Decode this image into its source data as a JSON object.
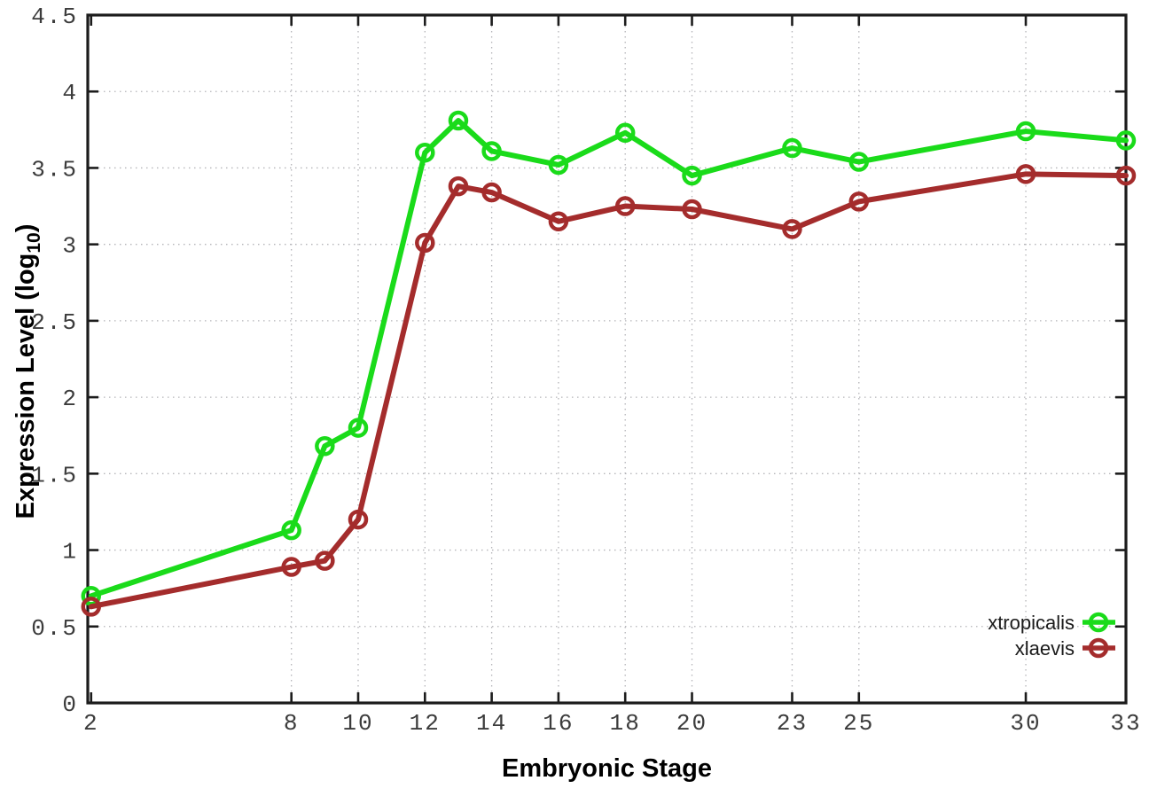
{
  "figure": {
    "background": "#ffffff"
  },
  "chart_data": {
    "type": "line",
    "title": "",
    "xlabel": "Embryonic Stage",
    "ylabel": "Expression Level (log10)",
    "ylabel_parts": {
      "main": "Expression Level (log",
      "sub": "10",
      "end": ")"
    },
    "x": [
      2,
      8,
      9,
      10,
      12,
      13,
      14,
      16,
      18,
      20,
      23,
      25,
      30,
      33
    ],
    "series": [
      {
        "name": "xtropicalis",
        "color": "#1adb1a",
        "marker": "open-circle",
        "values": [
          0.7,
          1.13,
          1.68,
          1.8,
          3.6,
          3.81,
          3.61,
          3.52,
          3.73,
          3.45,
          3.63,
          3.54,
          3.74,
          3.68
        ]
      },
      {
        "name": "xlaevis",
        "color": "#a42c2c",
        "marker": "open-circle",
        "values": [
          0.63,
          0.89,
          0.93,
          1.2,
          3.01,
          3.38,
          3.34,
          3.15,
          3.25,
          3.23,
          3.1,
          3.28,
          3.46,
          3.45
        ]
      }
    ],
    "xticks": [
      2,
      8,
      10,
      12,
      14,
      16,
      18,
      20,
      23,
      25,
      30,
      33
    ],
    "xtick_labels": [
      "2",
      "8",
      "10",
      "12",
      "14",
      "16",
      "18",
      "20",
      "23",
      "25",
      "30",
      "33"
    ],
    "yticks": [
      0,
      0.5,
      1,
      1.5,
      2,
      2.5,
      3,
      3.5,
      4,
      4.5
    ],
    "ytick_labels": [
      "0",
      "0.5",
      "1",
      "1.5",
      "2",
      "2.5",
      "3",
      "3.5",
      "4",
      "4.5"
    ],
    "xlim": [
      1.9,
      33.0
    ],
    "ylim": [
      0,
      4.5
    ],
    "grid": true,
    "grid_style": "dotted",
    "legend_position": "bottom-right",
    "colors": {
      "grid": "#b4b4b8",
      "border": "#1c1c1c",
      "tick_label": "#3c3c3c",
      "axis_label": "#000000",
      "legend_text": "#1a1a1a"
    }
  }
}
